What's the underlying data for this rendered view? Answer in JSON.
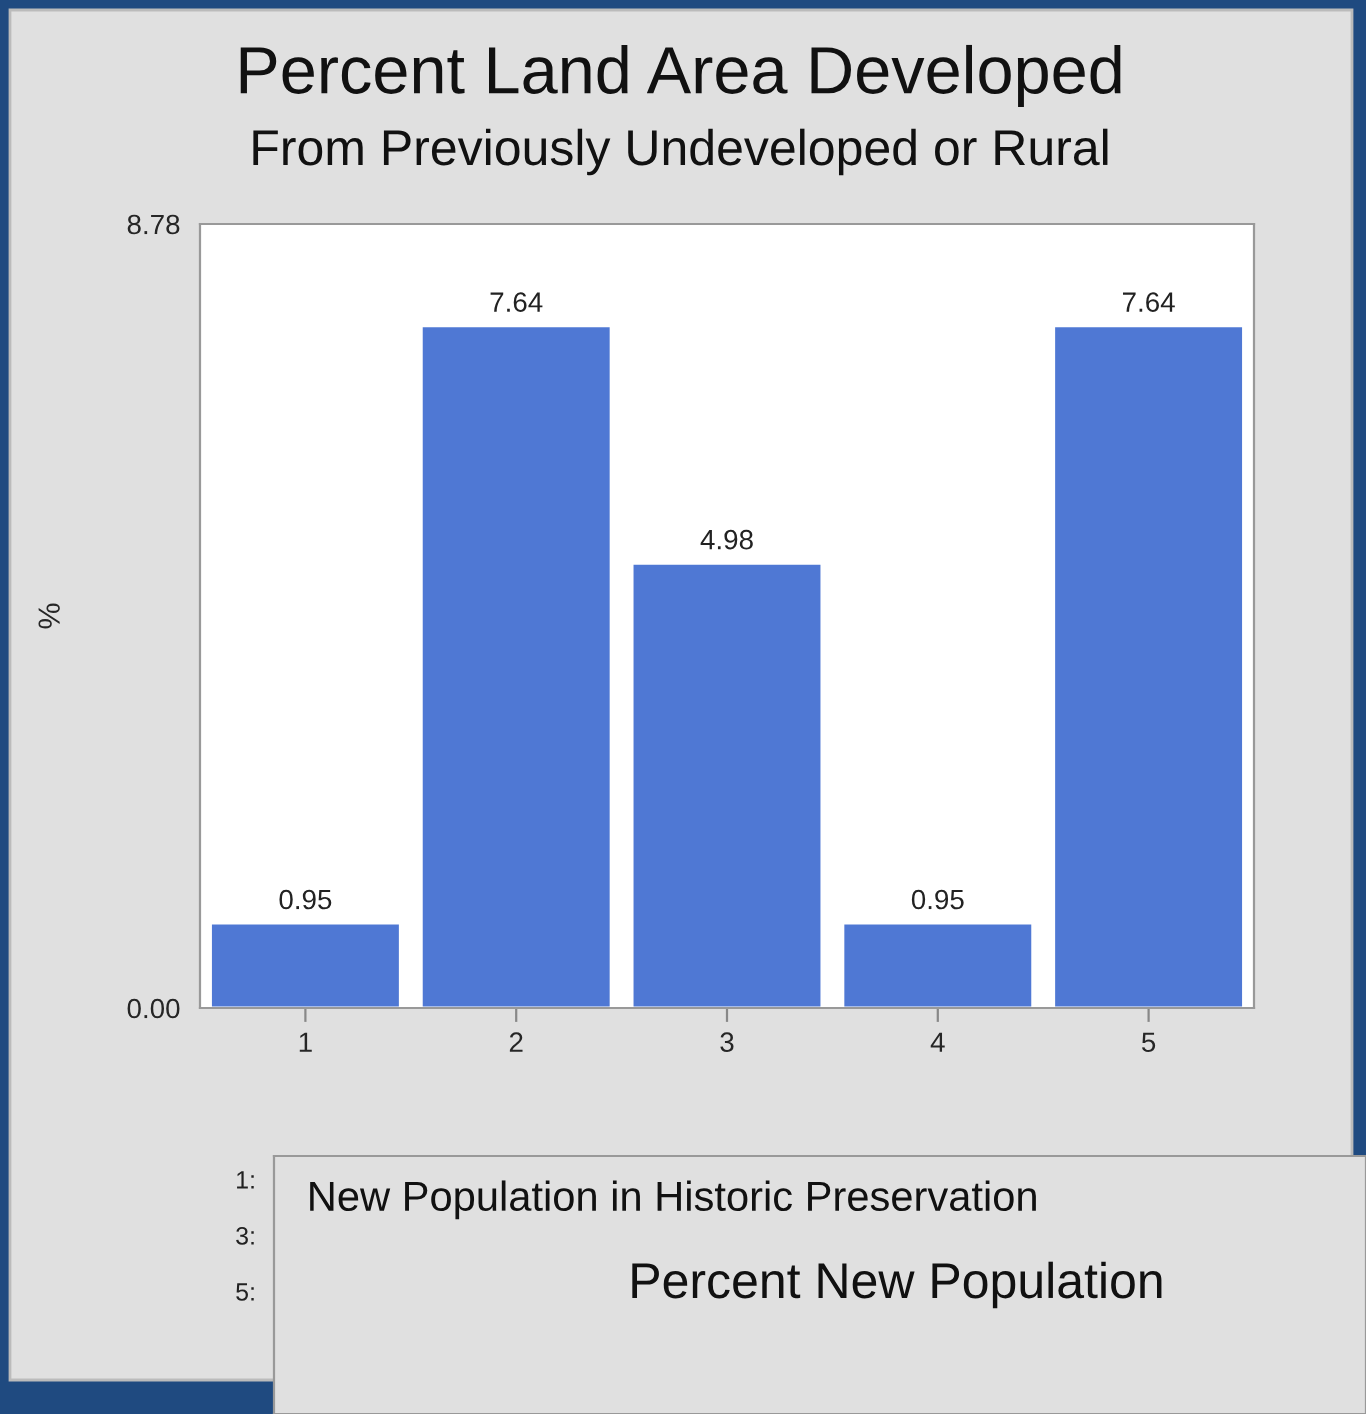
{
  "chart_data": [
    {
      "type": "bar",
      "title": "Percent Land Area Developed",
      "subtitle": "From Previously Undeveloped or Rural",
      "ylabel": "%",
      "categories": [
        "1",
        "2",
        "3",
        "4",
        "5"
      ],
      "values": [
        0.95,
        7.64,
        4.98,
        0.95,
        7.64
      ],
      "color": "#4f78d4",
      "data_labels": true,
      "ylim": [
        0,
        8.78
      ],
      "yticks": [
        {
          "value": 0,
          "label": "0.00"
        },
        {
          "value": 8.78,
          "label": "8.78"
        }
      ],
      "annotations": [
        "1:",
        "3:",
        "5:"
      ]
    },
    {
      "type": "other",
      "title": "New Population in Historic Preservation",
      "subtitle": "Percent New Population"
    }
  ]
}
